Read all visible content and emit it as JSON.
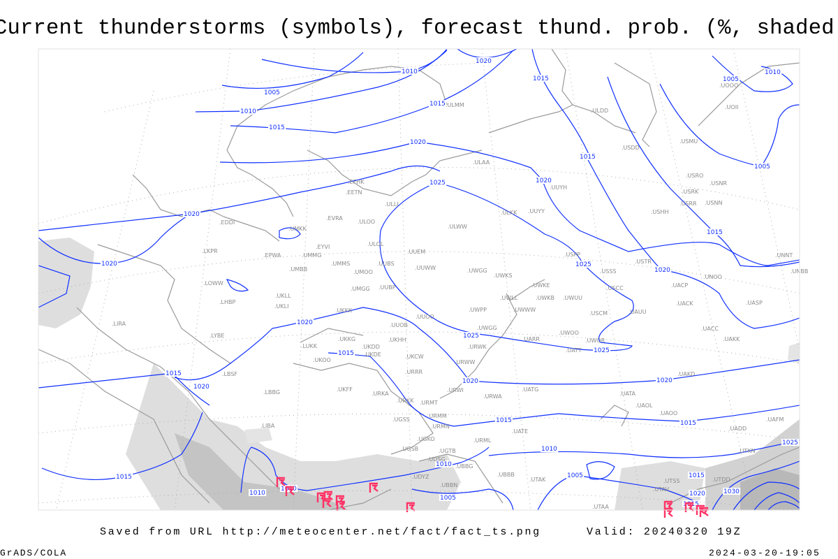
{
  "header": {
    "title": "Current thunderstorms (symbols), forecast thund. prob. (%, shaded)"
  },
  "footer": {
    "saved_from": "Saved from URL http://meteocenter.net/fact/fact_ts.png",
    "valid": "Valid: 20240320 19Z",
    "software": "GrADS/COLA",
    "generated": "2024-03-20-19:05"
  },
  "colors": {
    "isobars": "#1030ff",
    "coastlines": "#9a9a9a",
    "thunderstorm_symbols": "#ff3366",
    "probability_shading_light": "#dedede",
    "probability_shading_dark": "#c4c4c4"
  },
  "map": {
    "isobar_labels": [
      "1010",
      "1020",
      "1015",
      "1005",
      "1010",
      "1015",
      "1015",
      "1020",
      "1005",
      "1010",
      "1015",
      "1005",
      "1020",
      "1025",
      "1020",
      "1015",
      "1025",
      "1020",
      "1020",
      "1020",
      "1025",
      "1025",
      "1015",
      "1020",
      "1020",
      "1015",
      "1020",
      "1015",
      "1015",
      "1025",
      "1010",
      "1015",
      "1010",
      "1010",
      "1010",
      "1005",
      "1005",
      "1015",
      "1020",
      "1015",
      "1030"
    ],
    "stations": [
      "EDDI",
      "UMKK",
      "EVRA",
      "ULOO",
      "LKPR",
      "EPWA",
      "EYVI",
      "UMMG",
      "ULOL",
      "UMBB",
      "UMMS",
      "UMOO",
      "UUBS",
      "LOWW",
      "UMGG",
      "UUBP",
      "LHBP",
      "UKLL",
      "UKLI",
      "UKKK",
      "UUOB",
      "LYBE",
      "UKKG",
      "UKDD",
      "UKHH",
      "LUKK",
      "UKOO",
      "UKDE",
      "LBSF",
      "UKCW",
      "URRR",
      "ULDD",
      "UUYH",
      "ULAA",
      "EFHK",
      "EETN",
      "ULLI",
      "ULKK",
      "UUYY",
      "ULWW",
      "UUEM",
      "UUWW",
      "UWGG",
      "UWKS",
      "USPP",
      "USSS",
      "UWKE",
      "UWLL",
      "UWKB",
      "UWUU",
      "UUOO",
      "UWPP",
      "UWWW",
      "USCM",
      "UWGG",
      "UARR",
      "UWOO",
      "UWOR",
      "UATT",
      "URWW",
      "URWK",
      "USCC",
      "UAUU",
      "USTR",
      "UNOO",
      "UACP",
      "UACK",
      "UASP",
      "UACC",
      "UAKK",
      "UNNT",
      "UNBB",
      "USHH",
      "USRR",
      "USNN",
      "USRK",
      "USNR",
      "USRO",
      "USMU",
      "USDD",
      "UOII",
      "UOOO",
      "ULMM",
      "LIRA",
      "UKFF",
      "URKA",
      "URKK",
      "URMT",
      "URMM",
      "URMN",
      "UGSS",
      "UGKO",
      "UGSB",
      "UGTB",
      "UDSG",
      "UBBG",
      "UDYZ",
      "UBBN",
      "UBBB",
      "UTAK",
      "URML",
      "UATE",
      "URWI",
      "URWA",
      "UATG",
      "UATA",
      "UAOL",
      "UAOO",
      "UAKD",
      "UADD",
      "UAFM",
      "UTKN",
      "UTSS",
      "UTAV",
      "UTAA",
      "UTDD",
      "LBBG",
      "LIBA"
    ]
  }
}
